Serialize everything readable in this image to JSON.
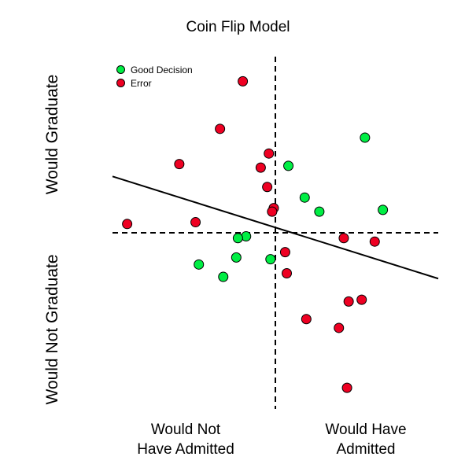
{
  "chart_data": {
    "type": "scatter",
    "title": "Coin Flip Model",
    "y_axis_labels": {
      "top": "Would Graduate",
      "bottom": "Would Not Graduate"
    },
    "x_axis_labels": {
      "left": [
        "Would Not",
        "Have Admitted"
      ],
      "right": [
        "Would Have",
        "Admitted"
      ]
    },
    "xlim": [
      -10,
      10
    ],
    "ylim": [
      -10,
      10
    ],
    "axes_visible": false,
    "grid": false,
    "reference_lines": {
      "vertical_x": 0,
      "horizontal_y": 0,
      "style": "dashed"
    },
    "fit_line": {
      "x": [
        -10,
        10
      ],
      "y": [
        3.2,
        -2.6
      ]
    },
    "legend": {
      "position": "top-left"
    },
    "colors": {
      "good": "#00ee44",
      "error": "#ee0022"
    },
    "series": [
      {
        "name": "Good Decision",
        "color": "#00ee44",
        "points": [
          {
            "x": 5.5,
            "y": 5.4
          },
          {
            "x": 0.8,
            "y": 3.8
          },
          {
            "x": 1.8,
            "y": 2.0
          },
          {
            "x": 2.7,
            "y": 1.2
          },
          {
            "x": 6.6,
            "y": 1.3
          },
          {
            "x": -1.8,
            "y": -0.2
          },
          {
            "x": -2.3,
            "y": -0.3
          },
          {
            "x": -2.4,
            "y": -1.4
          },
          {
            "x": -0.3,
            "y": -1.5
          },
          {
            "x": -4.7,
            "y": -1.8
          },
          {
            "x": -3.2,
            "y": -2.5
          }
        ]
      },
      {
        "name": "Error",
        "color": "#ee0022",
        "points": [
          {
            "x": -2.0,
            "y": 8.6
          },
          {
            "x": -3.4,
            "y": 5.9
          },
          {
            "x": -0.4,
            "y": 4.5
          },
          {
            "x": -5.9,
            "y": 3.9
          },
          {
            "x": -0.9,
            "y": 3.7
          },
          {
            "x": -0.5,
            "y": 2.6
          },
          {
            "x": -0.1,
            "y": 1.4
          },
          {
            "x": -0.2,
            "y": 1.2
          },
          {
            "x": -9.1,
            "y": 0.5
          },
          {
            "x": -4.9,
            "y": 0.6
          },
          {
            "x": 4.2,
            "y": -0.3
          },
          {
            "x": 6.1,
            "y": -0.5
          },
          {
            "x": 0.6,
            "y": -1.1
          },
          {
            "x": 0.7,
            "y": -2.3
          },
          {
            "x": 5.3,
            "y": -3.8
          },
          {
            "x": 4.5,
            "y": -3.9
          },
          {
            "x": 1.9,
            "y": -4.9
          },
          {
            "x": 3.9,
            "y": -5.4
          },
          {
            "x": 4.4,
            "y": -8.8
          }
        ]
      }
    ]
  }
}
